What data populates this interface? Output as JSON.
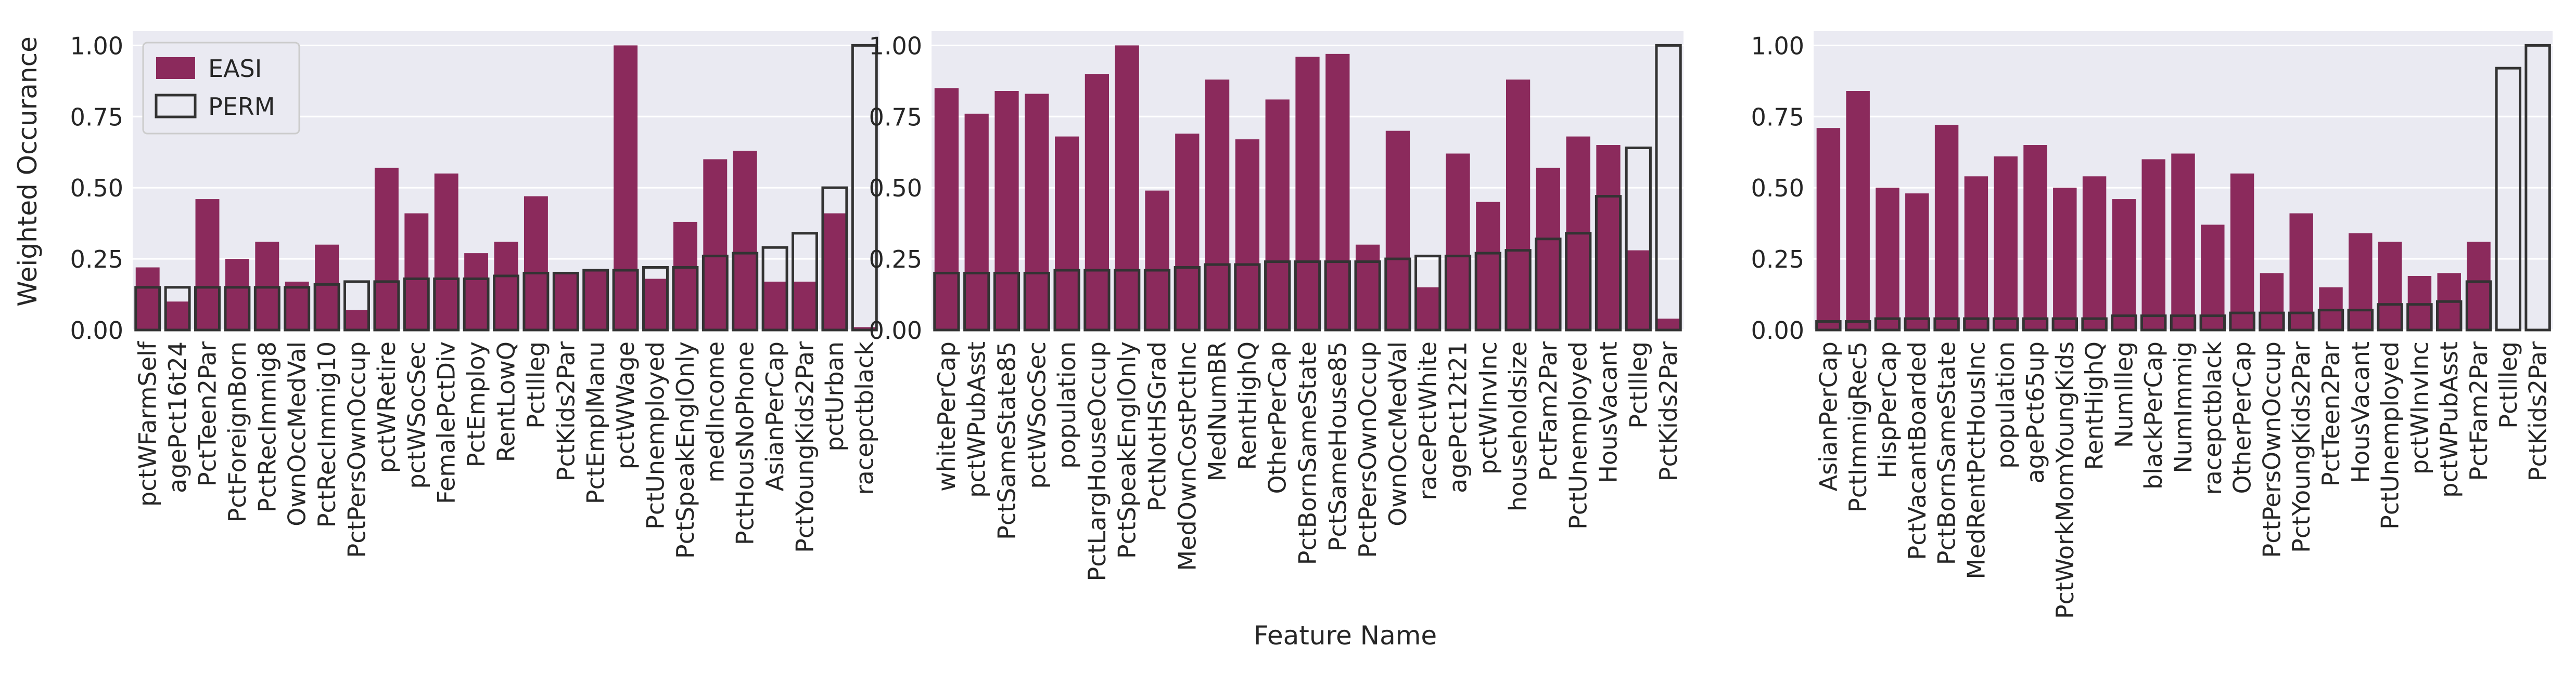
{
  "figure": {
    "ylabel": "Weighted Occurance",
    "xlabel": "Feature Name",
    "legend": {
      "placement": "top-left",
      "entries": [
        "EASI",
        "PERM"
      ]
    }
  },
  "colors": {
    "easi": "#8b2a5c",
    "perm_edge": "#333333",
    "panel_bg": "#eaeaf2",
    "grid": "#ffffff"
  },
  "chart_data": [
    {
      "type": "bar",
      "ylim": [
        0,
        1.05
      ],
      "yticks": [
        "0.00",
        "0.25",
        "0.50",
        "0.75",
        "1.00"
      ],
      "grid": true,
      "legend": "top-left",
      "categories": [
        "pctWFarmSelf",
        "agePct16t24",
        "PctTeen2Par",
        "PctForeignBorn",
        "PctRecImmig8",
        "OwnOccMedVal",
        "PctRecImmig10",
        "PctPersOwnOccup",
        "pctWRetire",
        "pctWSocSec",
        "FemalePctDiv",
        "PctEmploy",
        "RentLowQ",
        "PctIlleg",
        "PctKids2Par",
        "PctEmplManu",
        "pctWWage",
        "PctUnemployed",
        "PctSpeakEnglOnly",
        "medIncome",
        "PctHousNoPhone",
        "AsianPerCap",
        "PctYoungKids2Par",
        "pctUrban",
        "racepctblack"
      ],
      "series": [
        {
          "name": "EASI",
          "values": [
            0.22,
            0.1,
            0.46,
            0.25,
            0.31,
            0.17,
            0.3,
            0.07,
            0.57,
            0.41,
            0.55,
            0.27,
            0.31,
            0.47,
            0.2,
            0.21,
            1.0,
            0.18,
            0.38,
            0.6,
            0.63,
            0.17,
            0.17,
            0.41,
            0.01
          ]
        },
        {
          "name": "PERM",
          "values": [
            0.15,
            0.15,
            0.15,
            0.15,
            0.15,
            0.15,
            0.16,
            0.17,
            0.17,
            0.18,
            0.18,
            0.18,
            0.19,
            0.2,
            0.2,
            0.21,
            0.21,
            0.22,
            0.22,
            0.26,
            0.27,
            0.29,
            0.34,
            0.5,
            1.0
          ]
        }
      ]
    },
    {
      "type": "bar",
      "ylim": [
        0,
        1.05
      ],
      "yticks": [
        "0.00",
        "0.25",
        "0.50",
        "0.75",
        "1.00"
      ],
      "grid": true,
      "categories": [
        "whitePerCap",
        "pctWPubAsst",
        "PctSameState85",
        "pctWSocSec",
        "population",
        "PctLargHouseOccup",
        "PctSpeakEnglOnly",
        "PctNotHSGrad",
        "MedOwnCostPctInc",
        "MedNumBR",
        "RentHighQ",
        "OtherPerCap",
        "PctBornSameState",
        "PctSameHouse85",
        "PctPersOwnOccup",
        "OwnOccMedVal",
        "racePctWhite",
        "agePct12t21",
        "pctWInvInc",
        "householdsize",
        "PctFam2Par",
        "PctUnemployed",
        "HousVacant",
        "PctIlleg",
        "PctKids2Par"
      ],
      "series": [
        {
          "name": "EASI",
          "values": [
            0.85,
            0.76,
            0.84,
            0.83,
            0.68,
            0.9,
            1.0,
            0.49,
            0.69,
            0.88,
            0.67,
            0.81,
            0.96,
            0.97,
            0.3,
            0.7,
            0.15,
            0.62,
            0.45,
            0.88,
            0.57,
            0.68,
            0.65,
            0.28,
            0.04
          ]
        },
        {
          "name": "PERM",
          "values": [
            0.2,
            0.2,
            0.2,
            0.2,
            0.21,
            0.21,
            0.21,
            0.21,
            0.22,
            0.23,
            0.23,
            0.24,
            0.24,
            0.24,
            0.24,
            0.25,
            0.26,
            0.26,
            0.27,
            0.28,
            0.32,
            0.34,
            0.47,
            0.64,
            1.0
          ]
        }
      ]
    },
    {
      "type": "bar",
      "ylim": [
        0,
        1.05
      ],
      "yticks": [
        "0.00",
        "0.25",
        "0.50",
        "0.75",
        "1.00"
      ],
      "grid": true,
      "categories": [
        "AsianPerCap",
        "PctImmigRec5",
        "HispPerCap",
        "PctVacantBoarded",
        "PctBornSameState",
        "MedRentPctHousInc",
        "population",
        "agePct65up",
        "PctWorkMomYoungKids",
        "RentHighQ",
        "NumIlleg",
        "blackPerCap",
        "NumImmig",
        "racepctblack",
        "OtherPerCap",
        "PctPersOwnOccup",
        "PctYoungKids2Par",
        "PctTeen2Par",
        "HousVacant",
        "PctUnemployed",
        "pctWInvInc",
        "pctWPubAsst",
        "PctFam2Par",
        "PctIlleg",
        "PctKids2Par"
      ],
      "series": [
        {
          "name": "EASI",
          "values": [
            0.71,
            0.84,
            0.5,
            0.48,
            0.72,
            0.54,
            0.61,
            0.65,
            0.5,
            0.54,
            0.46,
            0.6,
            0.62,
            0.37,
            0.55,
            0.2,
            0.41,
            0.15,
            0.34,
            0.31,
            0.19,
            0.2,
            0.31,
            0.0,
            0.0
          ]
        },
        {
          "name": "PERM",
          "values": [
            0.03,
            0.03,
            0.04,
            0.04,
            0.04,
            0.04,
            0.04,
            0.04,
            0.04,
            0.04,
            0.05,
            0.05,
            0.05,
            0.05,
            0.06,
            0.06,
            0.06,
            0.07,
            0.07,
            0.09,
            0.09,
            0.1,
            0.17,
            0.92,
            1.0
          ]
        }
      ]
    }
  ]
}
